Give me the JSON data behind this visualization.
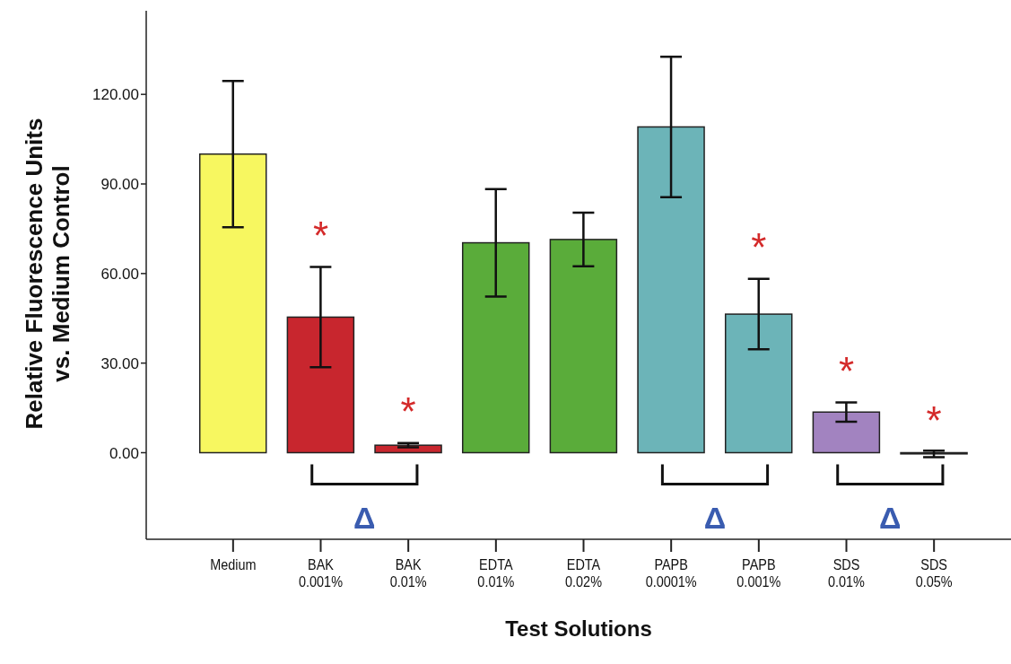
{
  "chart_data": {
    "type": "bar",
    "xlabel": "Test Solutions",
    "ylabel": "Relative Fluorescence Units\nvs. Medium Control",
    "categories": [
      "Medium",
      "BAK\n0.001%",
      "BAK\n0.01%",
      "EDTA\n0.01%",
      "EDTA\n0.02%",
      "PAPB\n0.0001%",
      "PAPB\n0.001%",
      "SDS\n0.01%",
      "SDS\n0.05%"
    ],
    "values": [
      100,
      45.4,
      2.5,
      70.3,
      71.4,
      109.1,
      46.4,
      13.6,
      -0.4
    ],
    "errors": [
      24.5,
      16.8,
      0.7,
      18,
      9,
      23.5,
      11.8,
      3.2,
      1.1
    ],
    "colors": [
      "#f7f760",
      "#c8262e",
      "#c8262e",
      "#5aac3a",
      "#5aac3a",
      "#6cb4b8",
      "#6cb4b8",
      "#a283c0",
      "#a283c0"
    ],
    "ylim": [
      -29,
      148
    ],
    "yticks": [
      {
        "value": 0,
        "label": "0.00"
      },
      {
        "value": 30,
        "label": "30.00"
      },
      {
        "value": 60,
        "label": "60.00"
      },
      {
        "value": 90,
        "label": "90.00"
      },
      {
        "value": 120,
        "label": "120.00"
      }
    ],
    "annotations": [
      "*",
      "*",
      "*",
      "*",
      "*",
      "Δ",
      "Δ",
      "Δ"
    ]
  }
}
